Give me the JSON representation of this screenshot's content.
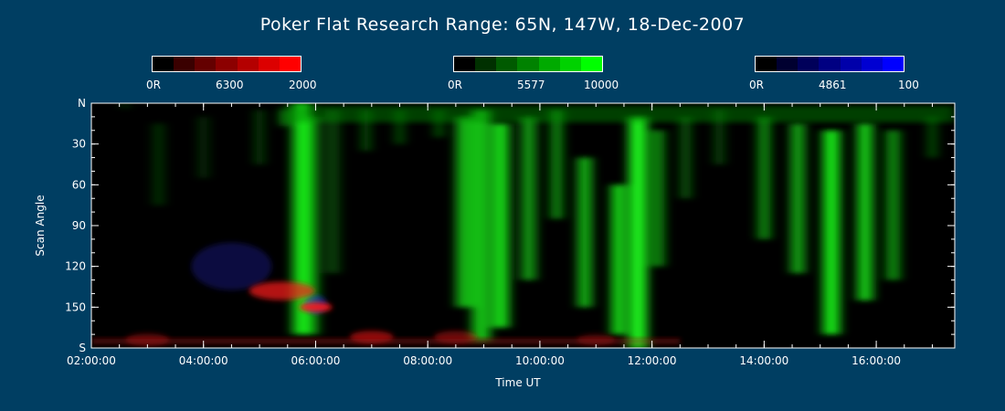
{
  "chart_data": {
    "type": "heatmap",
    "title": "Poker Flat Research Range: 65N, 147W, 18-Dec-2007",
    "xlabel": "Time UT",
    "ylabel": "Scan Angle",
    "xlim_hours": [
      2.0,
      17.4
    ],
    "ylim": [
      0,
      180
    ],
    "x_ticks": [
      {
        "h": 2,
        "label": "02:00:00"
      },
      {
        "h": 4,
        "label": "04:00:00"
      },
      {
        "h": 6,
        "label": "06:00:00"
      },
      {
        "h": 8,
        "label": "08:00:00"
      },
      {
        "h": 10,
        "label": "10:00:00"
      },
      {
        "h": 12,
        "label": "12:00:00"
      },
      {
        "h": 14,
        "label": "14:00:00"
      },
      {
        "h": 16,
        "label": "16:00:00"
      }
    ],
    "y_ticks": [
      {
        "v": 0,
        "label": "N"
      },
      {
        "v": 30,
        "label": "30"
      },
      {
        "v": 60,
        "label": "60"
      },
      {
        "v": 90,
        "label": "90"
      },
      {
        "v": 120,
        "label": "120"
      },
      {
        "v": 150,
        "label": "150"
      },
      {
        "v": 180,
        "label": "S"
      }
    ],
    "colorbars": [
      {
        "channel": "6300",
        "min_label": "0R",
        "mid_label": "6300",
        "max_label": "2000",
        "colors": [
          "#000000",
          "#3a0000",
          "#640000",
          "#8c0000",
          "#b40000",
          "#dc0000",
          "#ff0000"
        ]
      },
      {
        "channel": "5577",
        "min_label": "0R",
        "mid_label": "5577",
        "max_label": "10000",
        "colors": [
          "#000000",
          "#003000",
          "#005a00",
          "#008200",
          "#00aa00",
          "#00d200",
          "#00ff00"
        ]
      },
      {
        "channel": "4861",
        "min_label": "0R",
        "mid_label": "4861",
        "max_label": "100",
        "colors": [
          "#000000",
          "#000030",
          "#00005a",
          "#000082",
          "#0000aa",
          "#0000d2",
          "#0000ff"
        ]
      }
    ],
    "green_emission": [
      {
        "h": 2.6,
        "a": 0,
        "w": 3.5,
        "i": 0.3
      },
      {
        "h": 3.2,
        "a": 15,
        "w": 60,
        "i": 0.2
      },
      {
        "h": 4.0,
        "a": 10,
        "w": 45,
        "i": 0.18
      },
      {
        "h": 5.0,
        "a": 5,
        "w": 40,
        "i": 0.25
      },
      {
        "h": 5.45,
        "a": 5,
        "w": 12,
        "i": 0.6
      },
      {
        "h": 5.75,
        "a": 0,
        "w": 170,
        "i": 0.85
      },
      {
        "h": 5.9,
        "a": 10,
        "w": 160,
        "i": 0.55
      },
      {
        "h": 6.3,
        "a": 5,
        "w": 120,
        "i": 0.25
      },
      {
        "h": 6.9,
        "a": 5,
        "w": 30,
        "i": 0.35
      },
      {
        "h": 7.5,
        "a": 5,
        "w": 25,
        "i": 0.35
      },
      {
        "h": 8.2,
        "a": 5,
        "w": 20,
        "i": 0.4
      },
      {
        "h": 8.65,
        "a": 10,
        "w": 140,
        "i": 0.7
      },
      {
        "h": 8.95,
        "a": 5,
        "w": 170,
        "i": 0.75
      },
      {
        "h": 9.3,
        "a": 15,
        "w": 150,
        "i": 0.85
      },
      {
        "h": 9.8,
        "a": 10,
        "w": 120,
        "i": 0.6
      },
      {
        "h": 10.3,
        "a": 5,
        "w": 80,
        "i": 0.55
      },
      {
        "h": 10.8,
        "a": 40,
        "w": 110,
        "i": 0.7
      },
      {
        "h": 11.4,
        "a": 60,
        "w": 110,
        "i": 0.85
      },
      {
        "h": 11.75,
        "a": 10,
        "w": 170,
        "i": 0.95
      },
      {
        "h": 12.1,
        "a": 20,
        "w": 100,
        "i": 0.55
      },
      {
        "h": 12.6,
        "a": 10,
        "w": 60,
        "i": 0.35
      },
      {
        "h": 13.2,
        "a": 5,
        "w": 40,
        "i": 0.3
      },
      {
        "h": 14.0,
        "a": 10,
        "w": 90,
        "i": 0.55
      },
      {
        "h": 14.6,
        "a": 15,
        "w": 110,
        "i": 0.65
      },
      {
        "h": 15.2,
        "a": 20,
        "w": 150,
        "i": 0.9
      },
      {
        "h": 15.8,
        "a": 15,
        "w": 130,
        "i": 0.8
      },
      {
        "h": 16.3,
        "a": 20,
        "w": 110,
        "i": 0.55
      },
      {
        "h": 17.0,
        "a": 10,
        "w": 30,
        "i": 0.35
      }
    ],
    "red_emission": [
      {
        "h": 5.4,
        "a": 138,
        "w": 10,
        "i": 0.7
      },
      {
        "h": 6.0,
        "a": 150,
        "w": 4,
        "i": 0.9
      },
      {
        "h": 3.0,
        "a": 174,
        "w": 6,
        "i": 0.35
      },
      {
        "h": 7.0,
        "a": 172,
        "w": 6,
        "i": 0.55
      },
      {
        "h": 8.5,
        "a": 172,
        "w": 6,
        "i": 0.4
      },
      {
        "h": 11.0,
        "a": 174,
        "w": 5,
        "i": 0.3
      }
    ],
    "blue_emission": [
      {
        "h": 4.5,
        "a": 120,
        "w": 50,
        "i": 0.25
      },
      {
        "h": 6.0,
        "a": 148,
        "w": 10,
        "i": 0.5
      }
    ]
  }
}
